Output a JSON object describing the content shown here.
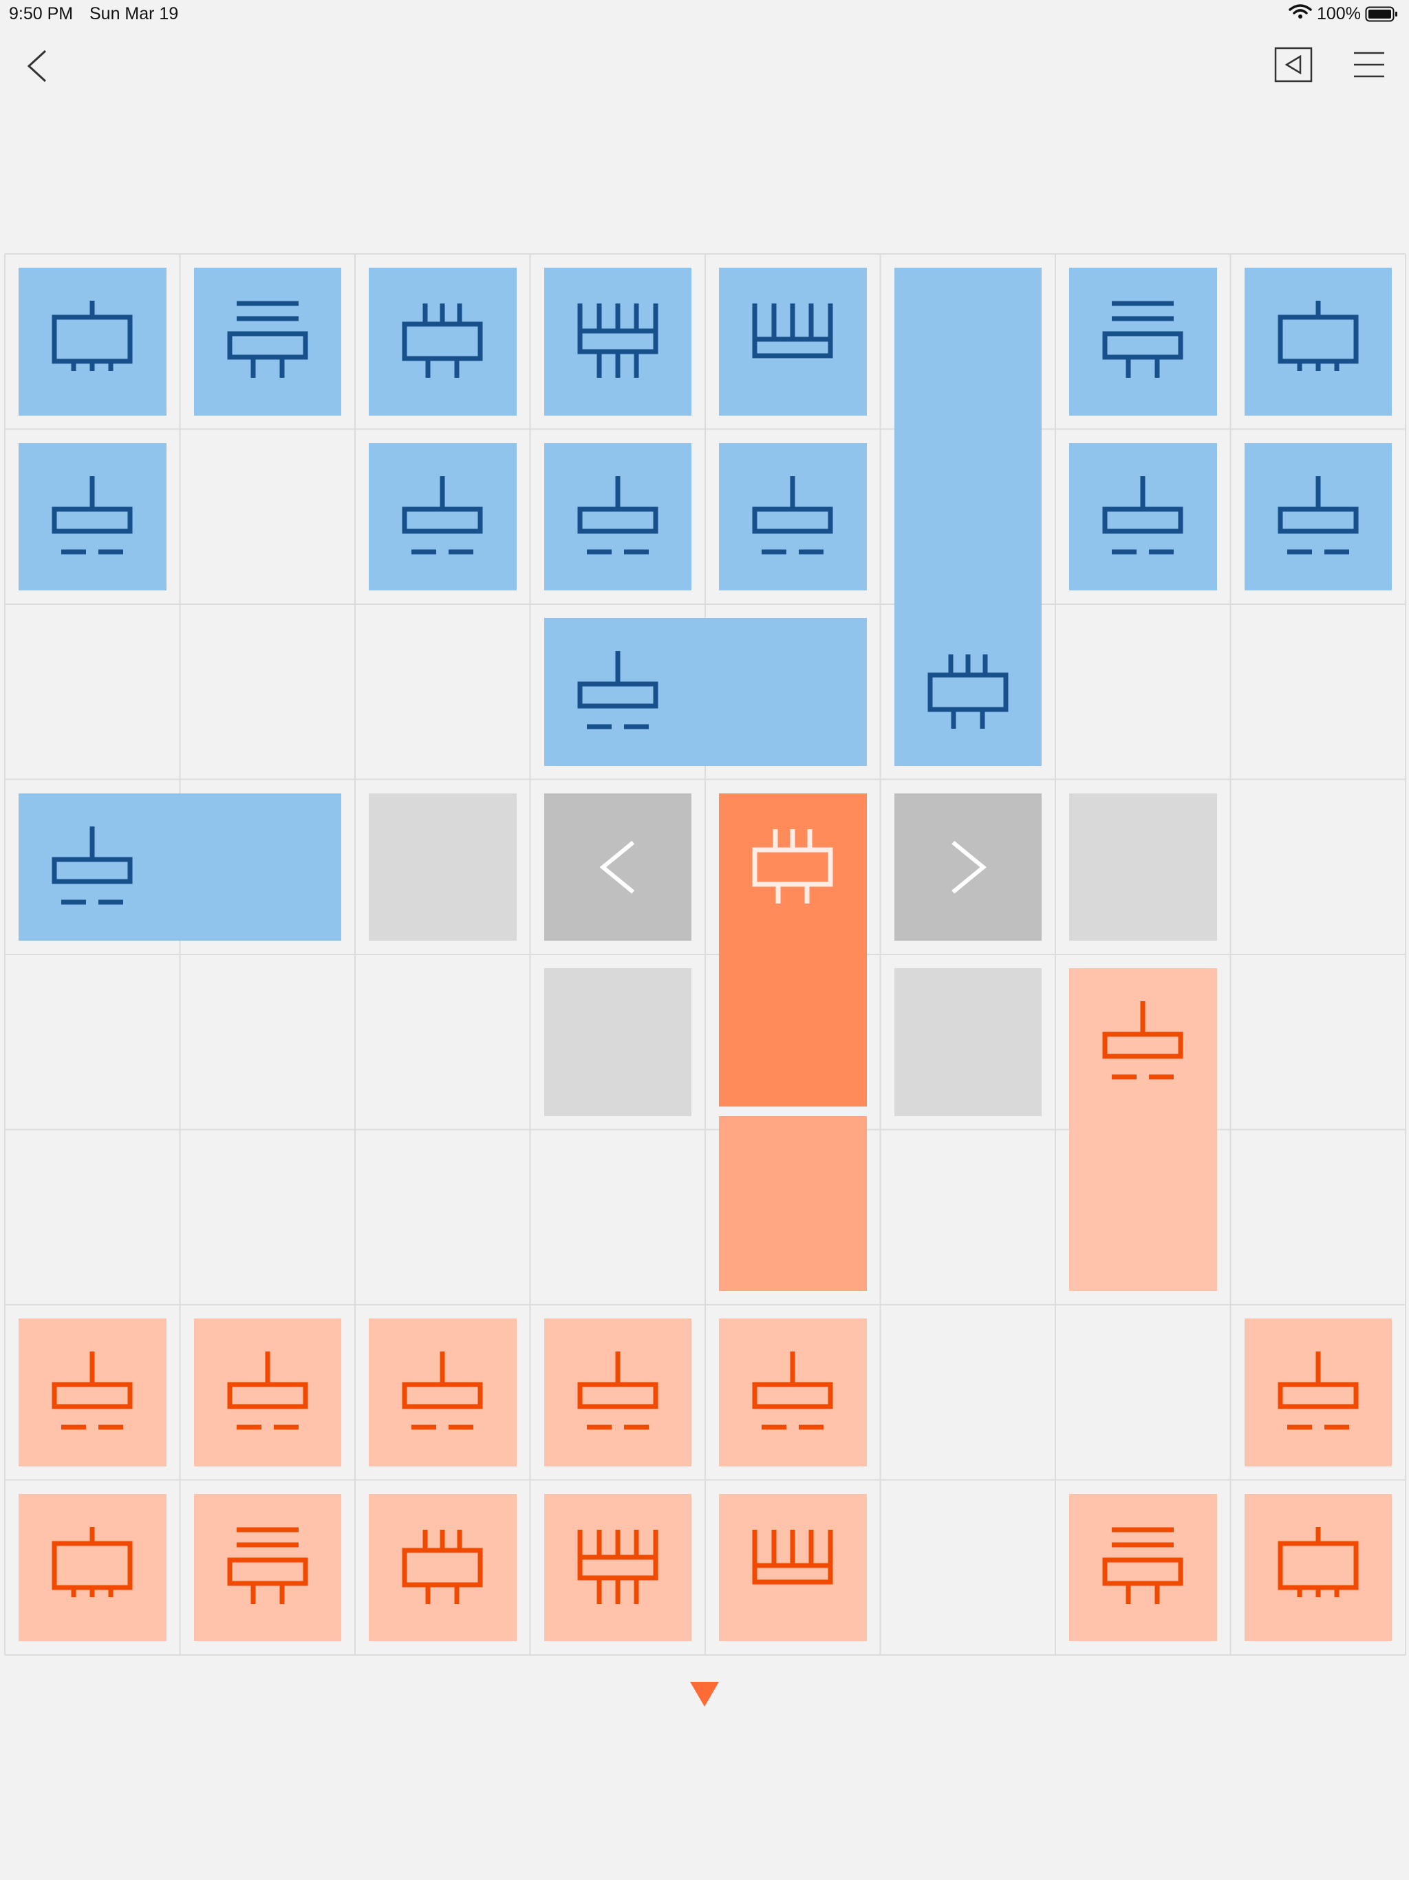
{
  "status_bar": {
    "time": "9:50 PM",
    "date": "Sun Mar 19",
    "battery": "100%"
  },
  "toolbar": {
    "back_icon": "chevron-left-icon",
    "undo_icon": "undo-icon",
    "menu_icon": "hamburger-menu-icon"
  },
  "colors": {
    "background": "#f2f2f2",
    "grid_line": "#dcdcdc",
    "blue_tile": "#90c4ec",
    "blue_glyph": "#17508a",
    "pink_tile": "#ffc2ab",
    "orange_glyph": "#f04a00",
    "selected_piece": "#ff8a5a",
    "selected_piece_trail": "#ffa682",
    "move_hint": "#d9d9d9",
    "move_arrow": "#bfbfbf",
    "turn_indicator": "#ff6b35"
  },
  "board": {
    "columns": 8,
    "rows": 8,
    "pieces": [
      {
        "side": "blue",
        "type": "foot",
        "col": 0,
        "row": 0,
        "cols": 1,
        "rows": 1
      },
      {
        "side": "blue",
        "type": "bars",
        "col": 1,
        "row": 0,
        "cols": 1,
        "rows": 1
      },
      {
        "side": "blue",
        "type": "crown",
        "col": 2,
        "row": 0,
        "cols": 1,
        "rows": 1
      },
      {
        "side": "blue",
        "type": "tower",
        "col": 3,
        "row": 0,
        "cols": 1,
        "rows": 1
      },
      {
        "side": "blue",
        "type": "comb",
        "col": 4,
        "row": 0,
        "cols": 1,
        "rows": 1
      },
      {
        "side": "blue",
        "type": "crown",
        "col": 5,
        "row": 0,
        "cols": 1,
        "rows": 3
      },
      {
        "side": "blue",
        "type": "bars",
        "col": 6,
        "row": 0,
        "cols": 1,
        "rows": 1
      },
      {
        "side": "blue",
        "type": "foot",
        "col": 7,
        "row": 0,
        "cols": 1,
        "rows": 1
      },
      {
        "side": "blue",
        "type": "pawn",
        "col": 0,
        "row": 1,
        "cols": 1,
        "rows": 1
      },
      {
        "side": "blue",
        "type": "pawn",
        "col": 2,
        "row": 1,
        "cols": 1,
        "rows": 1
      },
      {
        "side": "blue",
        "type": "pawn",
        "col": 3,
        "row": 1,
        "cols": 1,
        "rows": 1
      },
      {
        "side": "blue",
        "type": "pawn",
        "col": 4,
        "row": 1,
        "cols": 1,
        "rows": 1
      },
      {
        "side": "blue",
        "type": "pawn",
        "col": 6,
        "row": 1,
        "cols": 1,
        "rows": 1
      },
      {
        "side": "blue",
        "type": "pawn",
        "col": 7,
        "row": 1,
        "cols": 1,
        "rows": 1
      },
      {
        "side": "blue",
        "type": "pawn",
        "col": 3,
        "row": 2,
        "cols": 2,
        "rows": 1
      },
      {
        "side": "blue",
        "type": "pawn",
        "col": 0,
        "row": 3,
        "cols": 2,
        "rows": 1
      },
      {
        "side": "orange",
        "type": "crown",
        "col": 4,
        "row": 3,
        "cols": 1,
        "rows": 2,
        "selected": true
      },
      {
        "side": "orange",
        "type": "pawn",
        "col": 6,
        "row": 4,
        "cols": 1,
        "rows": 2
      },
      {
        "side": "orange",
        "type": "pawn",
        "col": 0,
        "row": 6,
        "cols": 1,
        "rows": 1
      },
      {
        "side": "orange",
        "type": "pawn",
        "col": 1,
        "row": 6,
        "cols": 1,
        "rows": 1
      },
      {
        "side": "orange",
        "type": "pawn",
        "col": 2,
        "row": 6,
        "cols": 1,
        "rows": 1
      },
      {
        "side": "orange",
        "type": "pawn",
        "col": 3,
        "row": 6,
        "cols": 1,
        "rows": 1
      },
      {
        "side": "orange",
        "type": "pawn",
        "col": 4,
        "row": 6,
        "cols": 1,
        "rows": 1
      },
      {
        "side": "orange",
        "type": "pawn",
        "col": 7,
        "row": 6,
        "cols": 1,
        "rows": 1
      },
      {
        "side": "orange",
        "type": "foot",
        "col": 0,
        "row": 7,
        "cols": 1,
        "rows": 1
      },
      {
        "side": "orange",
        "type": "bars",
        "col": 1,
        "row": 7,
        "cols": 1,
        "rows": 1
      },
      {
        "side": "orange",
        "type": "crown",
        "col": 2,
        "row": 7,
        "cols": 1,
        "rows": 1
      },
      {
        "side": "orange",
        "type": "tower",
        "col": 3,
        "row": 7,
        "cols": 1,
        "rows": 1
      },
      {
        "side": "orange",
        "type": "comb",
        "col": 4,
        "row": 7,
        "cols": 1,
        "rows": 1
      },
      {
        "side": "orange",
        "type": "bars",
        "col": 6,
        "row": 7,
        "cols": 1,
        "rows": 1
      },
      {
        "side": "orange",
        "type": "foot",
        "col": 7,
        "row": 7,
        "cols": 1,
        "rows": 1
      }
    ],
    "trail": {
      "col": 4,
      "row": 5
    },
    "move_hints": [
      {
        "col": 2,
        "row": 3,
        "kind": "target"
      },
      {
        "col": 3,
        "row": 3,
        "kind": "arrow",
        "dir": "left"
      },
      {
        "col": 5,
        "row": 3,
        "kind": "arrow",
        "dir": "right"
      },
      {
        "col": 6,
        "row": 3,
        "kind": "target"
      },
      {
        "col": 3,
        "row": 4,
        "kind": "target"
      },
      {
        "col": 5,
        "row": 4,
        "kind": "target"
      }
    ]
  },
  "turn_indicator_icon": "down-triangle-icon"
}
